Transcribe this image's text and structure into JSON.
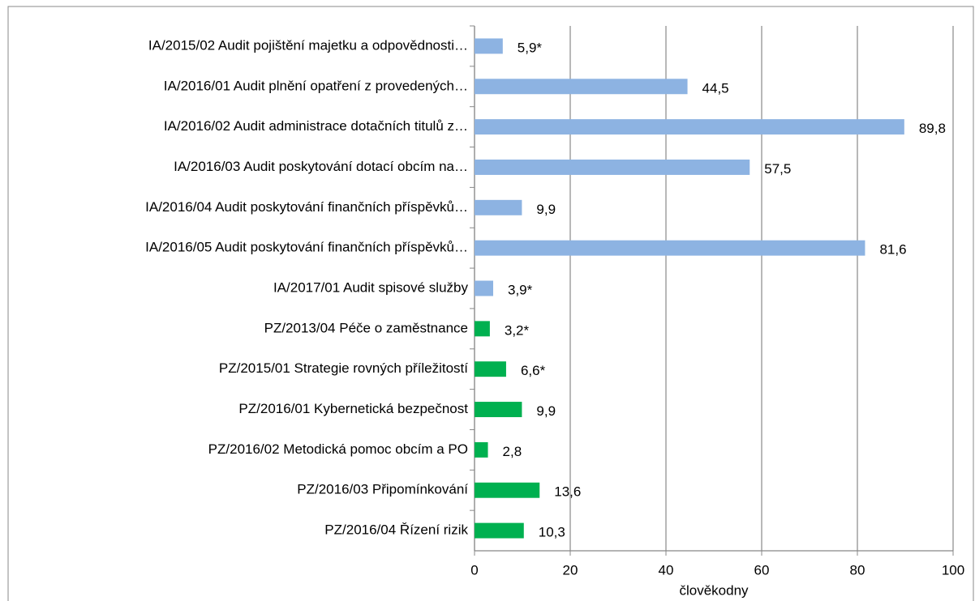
{
  "chart_data": {
    "type": "barh",
    "categories": [
      "IA/2015/02 Audit pojištění majetku a odpovědnosti…",
      "IA/2016/01 Audit plnění opatření z provedených…",
      "IA/2016/02 Audit administrace dotačních titulů z…",
      "IA/2016/03 Audit poskytování dotací obcím na…",
      "IA/2016/04 Audit poskytování finančních příspěvků…",
      "IA/2016/05 Audit poskytování finančních příspěvků…",
      "IA/2017/01 Audit spisové služby",
      "PZ/2013/04 Péče o zaměstnance",
      "PZ/2015/01 Strategie rovných příležitostí",
      "PZ/2016/01 Kybernetická bezpečnost",
      "PZ/2016/02 Metodická pomoc obcím a PO",
      "PZ/2016/03 Připomínkování",
      "PZ/2016/04 Řízení rizik"
    ],
    "values": [
      5.9,
      44.5,
      89.8,
      57.5,
      9.9,
      81.6,
      3.9,
      3.2,
      6.6,
      9.9,
      2.8,
      13.6,
      10.3
    ],
    "value_labels": [
      "5,9*",
      "44,5",
      "89,8",
      "57,5",
      "9,9",
      "81,6",
      "3,9*",
      "3,2*",
      "6,6*",
      "9,9",
      "2,8",
      "13,6",
      "10,3"
    ],
    "colors": [
      "#8db3e2",
      "#8db3e2",
      "#8db3e2",
      "#8db3e2",
      "#8db3e2",
      "#8db3e2",
      "#8db3e2",
      "#00b050",
      "#00b050",
      "#00b050",
      "#00b050",
      "#00b050",
      "#00b050"
    ],
    "x_label": "člověkodny",
    "xlim": [
      0,
      100
    ],
    "xticks": [
      0,
      20,
      40,
      60,
      80,
      100
    ],
    "grid": true
  }
}
